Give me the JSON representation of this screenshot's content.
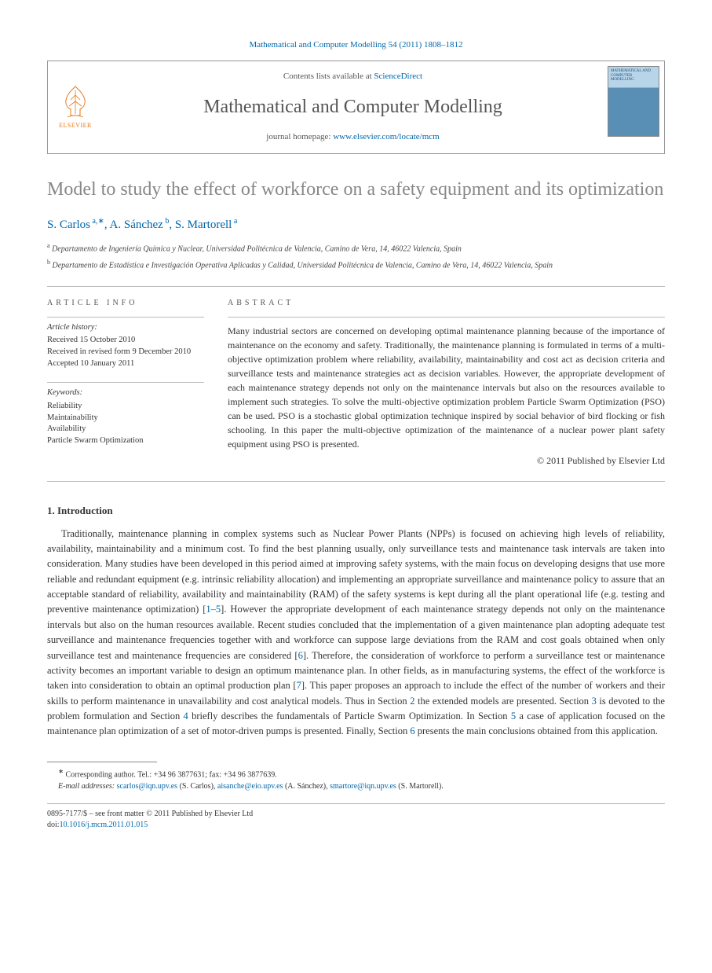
{
  "citation": "Mathematical and Computer Modelling 54 (2011) 1808–1812",
  "header": {
    "contents_prefix": "Contents lists available at ",
    "contents_link": "ScienceDirect",
    "journal_title": "Mathematical and Computer Modelling",
    "homepage_prefix": "journal homepage: ",
    "homepage_url": "www.elsevier.com/locate/mcm",
    "publisher": "ELSEVIER",
    "cover_text": "MATHEMATICAL AND COMPUTER MODELLING"
  },
  "title": "Model to study the effect of workforce on a safety equipment and its optimization",
  "authors_raw": "S. Carlos",
  "author_list": [
    {
      "name": "S. Carlos",
      "marks": "a,∗"
    },
    {
      "name": "A. Sánchez",
      "marks": "b"
    },
    {
      "name": "S. Martorell",
      "marks": "a"
    }
  ],
  "affiliations": [
    {
      "mark": "a",
      "text": "Departamento de Ingeniería Química y Nuclear, Universidad Politécnica de Valencia, Camino de Vera, 14, 46022 Valencia, Spain"
    },
    {
      "mark": "b",
      "text": "Departamento de Estadística e Investigación Operativa Aplicadas y Calidad, Universidad Politécnica de Valencia, Camino de Vera, 14, 46022 Valencia, Spain"
    }
  ],
  "article_info": {
    "header": "ARTICLE INFO",
    "history_label": "Article history:",
    "history": [
      "Received 15 October 2010",
      "Received in revised form 9 December 2010",
      "Accepted 10 January 2011"
    ],
    "keywords_label": "Keywords:",
    "keywords": [
      "Reliability",
      "Maintainability",
      "Availability",
      "Particle Swarm Optimization"
    ]
  },
  "abstract": {
    "header": "ABSTRACT",
    "text": "Many industrial sectors are concerned on developing optimal maintenance planning because of the importance of maintenance on the economy and safety. Traditionally, the maintenance planning is formulated in terms of a multi-objective optimization problem where reliability, availability, maintainability and cost act as decision criteria and surveillance tests and maintenance strategies act as decision variables. However, the appropriate development of each maintenance strategy depends not only on the maintenance intervals but also on the resources available to implement such strategies. To solve the multi-objective optimization problem Particle Swarm Optimization (PSO) can be used. PSO is a stochastic global optimization technique inspired by social behavior of bird flocking or fish schooling. In this paper the multi-objective optimization of the maintenance of a nuclear power plant safety equipment using PSO is presented.",
    "copyright": "© 2011 Published by Elsevier Ltd"
  },
  "intro": {
    "heading": "1. Introduction",
    "text_parts": [
      "Traditionally, maintenance planning in complex systems such as Nuclear Power Plants (NPPs) is focused on achieving high levels of reliability, availability, maintainability and a minimum cost. To find the best planning usually, only surveillance tests and maintenance task intervals are taken into consideration. Many studies have been developed in this period aimed at improving safety systems, with the main focus on developing designs that use more reliable and redundant equipment (e.g. intrinsic reliability allocation) and implementing an appropriate surveillance and maintenance policy to assure that an acceptable standard of reliability, availability and maintainability (RAM) of the safety systems is kept during all the plant operational life (e.g. testing and preventive maintenance optimization) [",
      "1–5",
      "]. However the appropriate development of each maintenance strategy depends not only on the maintenance intervals but also on the human resources available. Recent studies concluded that the implementation of a given maintenance plan adopting adequate test surveillance and maintenance frequencies together with and workforce can suppose large deviations from the RAM and cost goals obtained when only surveillance test and maintenance frequencies are considered [",
      "6",
      "]. Therefore, the consideration of workforce to perform a surveillance test or maintenance activity becomes an important variable to design an optimum maintenance plan. In other fields, as in manufacturing systems, the effect of the workforce is taken into consideration to obtain an optimal production plan [",
      "7",
      "]. This paper proposes an approach to include the effect of the number of workers and their skills to perform maintenance in unavailability and cost analytical models. Thus in Section ",
      "2",
      " the extended models are presented. Section ",
      "3",
      " is devoted to the problem formulation and Section ",
      "4",
      " briefly describes the fundamentals of Particle Swarm Optimization. In Section ",
      "5",
      " a case of application focused on the maintenance plan optimization of a set of motor-driven pumps is presented. Finally, Section ",
      "6",
      " presents the main conclusions obtained from this application."
    ]
  },
  "footnotes": {
    "corresponding": "Corresponding author. Tel.: +34 96 3877631; fax: +34 96 3877639.",
    "email_label": "E-mail addresses:",
    "emails": [
      {
        "addr": "scarlos@iqn.upv.es",
        "who": "(S. Carlos)"
      },
      {
        "addr": "aisanche@eio.upv.es",
        "who": "(A. Sánchez)"
      },
      {
        "addr": "smartore@iqn.upv.es",
        "who": "(S. Martorell)"
      }
    ]
  },
  "bottom": {
    "issn": "0895-7177/$ – see front matter © 2011 Published by Elsevier Ltd",
    "doi_prefix": "doi:",
    "doi": "10.1016/j.mcm.2011.01.015"
  },
  "colors": {
    "link": "#0066aa",
    "title_gray": "#878787",
    "orange": "#e67817"
  }
}
